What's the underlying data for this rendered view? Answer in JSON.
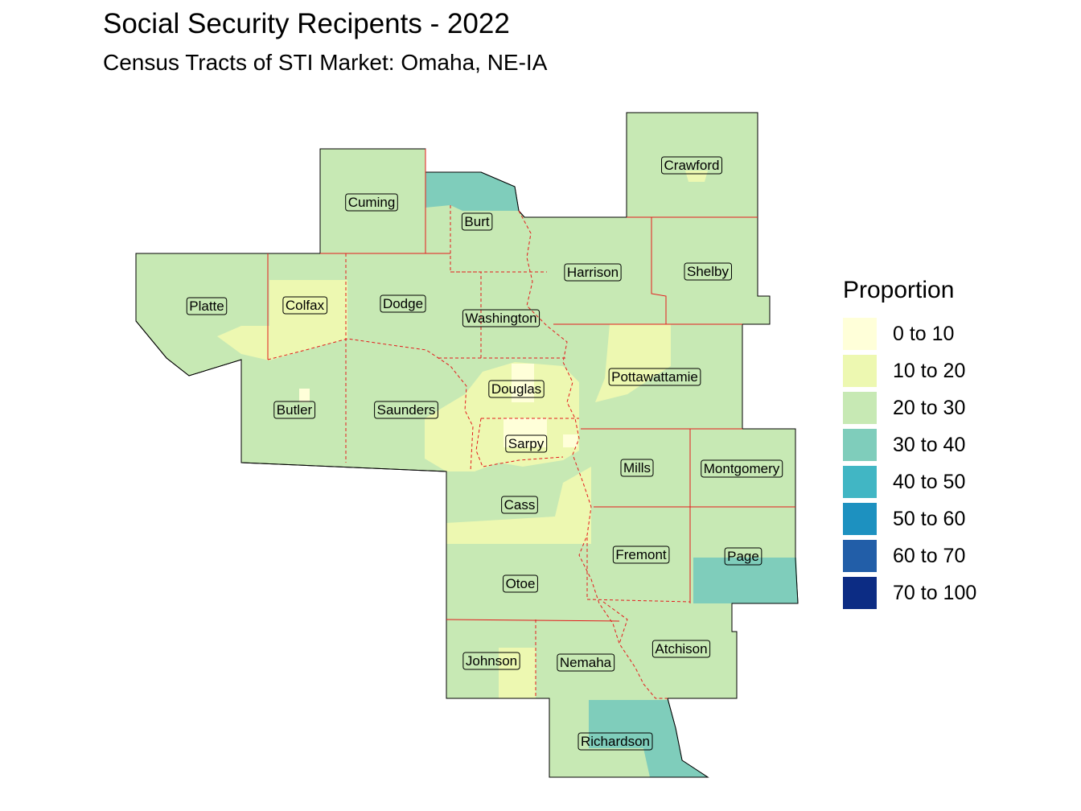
{
  "title": "Social Security Recipents - 2022",
  "subtitle": "Census Tracts of STI Market: Omaha, NE-IA",
  "legend": {
    "title": "Proportion",
    "items": [
      {
        "label": "0 to 10",
        "color": "#ffffd9"
      },
      {
        "label": "10 to 20",
        "color": "#edf8b1"
      },
      {
        "label": "20 to 30",
        "color": "#c7e9b4"
      },
      {
        "label": "30 to 40",
        "color": "#7fcdbb"
      },
      {
        "label": "40 to 50",
        "color": "#41b6c4"
      },
      {
        "label": "50 to 60",
        "color": "#1d91c0"
      },
      {
        "label": "60 to 70",
        "color": "#225ea8"
      },
      {
        "label": "70 to 100",
        "color": "#0c2c84"
      }
    ]
  },
  "counties": [
    "Crawford",
    "Cuming",
    "Burt",
    "Harrison",
    "Shelby",
    "Platte",
    "Colfax",
    "Dodge",
    "Washington",
    "Pottawattamie",
    "Douglas",
    "Butler",
    "Saunders",
    "Sarpy",
    "Mills",
    "Montgomery",
    "Cass",
    "Fremont",
    "Page",
    "Otoe",
    "Atchison",
    "Johnson",
    "Nemaha",
    "Richardson"
  ]
}
